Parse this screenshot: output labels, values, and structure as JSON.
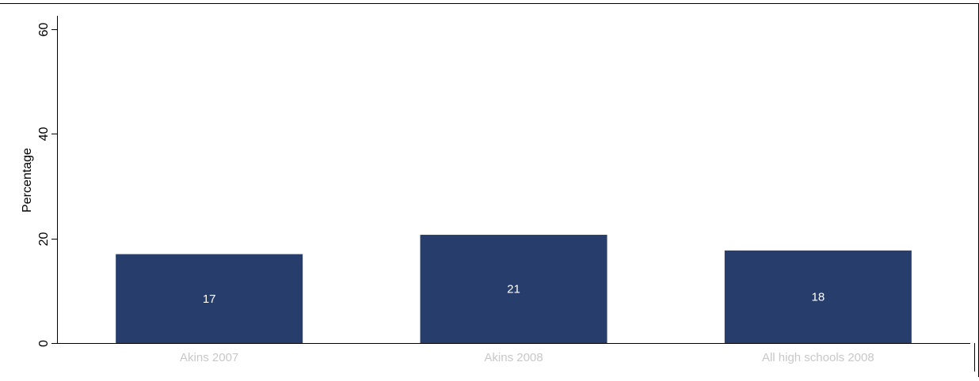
{
  "chart_data": {
    "type": "bar",
    "title": "",
    "xlabel": "",
    "ylabel": "Percentage",
    "categories": [
      "Akins 2007",
      "Akins 2008",
      "All high schools 2008"
    ],
    "values": [
      17,
      20.7,
      17.7
    ],
    "value_labels": [
      "17",
      "21",
      "18"
    ],
    "ylim": [
      0,
      60
    ],
    "yticks": [
      0,
      20,
      40,
      60
    ],
    "ytick_labels": [
      "0",
      "20",
      "40",
      "60"
    ],
    "grid": false,
    "bar_color": "#273d6b",
    "label_color": "#ffffff",
    "category_label_color": "#c8c8c8"
  }
}
